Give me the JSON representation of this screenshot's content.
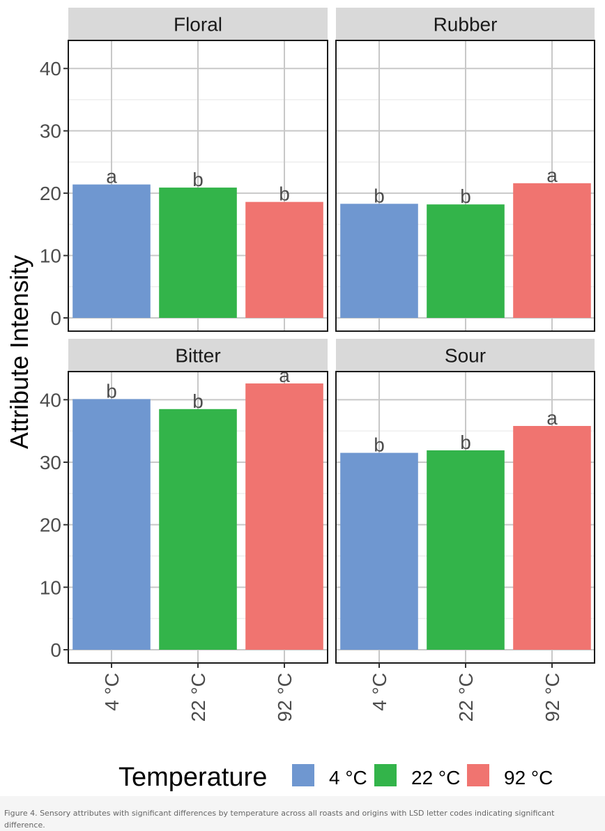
{
  "chart_data": {
    "type": "bar",
    "ylabel": "Attribute Intensity",
    "categories": [
      "4 °C",
      "22 °C",
      "92 °C"
    ],
    "ylim": [
      0,
      44.5
    ],
    "yticks": [
      0,
      10,
      20,
      30,
      40
    ],
    "grid": true,
    "legend": {
      "title": "Temperature",
      "placement": "bottom",
      "entries": [
        "4 °C",
        "22 °C",
        "92 °C"
      ]
    },
    "colors": [
      "#6f97d0",
      "#33b44a",
      "#f07470"
    ],
    "panels": [
      {
        "title": "Floral",
        "values": [
          21.4,
          20.9,
          18.6
        ],
        "letters": [
          "a",
          "b",
          "b"
        ]
      },
      {
        "title": "Rubber",
        "values": [
          18.3,
          18.2,
          21.6
        ],
        "letters": [
          "b",
          "b",
          "a"
        ]
      },
      {
        "title": "Bitter",
        "values": [
          40.1,
          38.5,
          42.6
        ],
        "letters": [
          "b",
          "b",
          "a"
        ]
      },
      {
        "title": "Sour",
        "values": [
          31.5,
          31.9,
          35.8
        ],
        "letters": [
          "b",
          "b",
          "a"
        ]
      }
    ]
  },
  "caption": "Figure 4. Sensory attributes with significant differences by temperature across all roasts and origins with LSD letter codes indicating significant difference."
}
